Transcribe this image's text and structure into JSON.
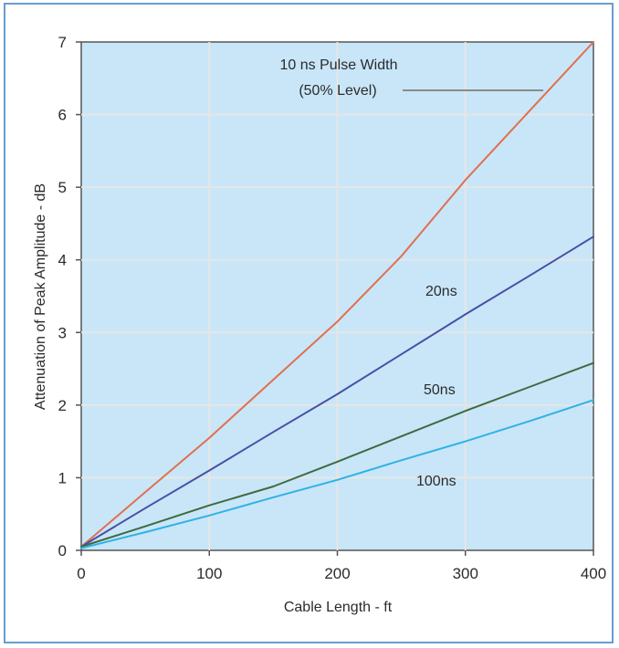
{
  "chart_data": {
    "type": "line",
    "title": "",
    "xlabel": "Cable Length - ft",
    "ylabel": "Attenuation of Peak Amplitude - dB",
    "xlim": [
      0,
      400
    ],
    "ylim": [
      0,
      7
    ],
    "xticks": [
      0,
      100,
      200,
      300,
      400
    ],
    "yticks": [
      0,
      1,
      2,
      3,
      4,
      5,
      6,
      7
    ],
    "grid": true,
    "plot_background": "#c8e6f8",
    "grid_color": "#e6e6e6",
    "series": [
      {
        "key": "10ns",
        "name": "10 ns Pulse Width (50% Level)",
        "label_lines": [
          "10 ns Pulse Width",
          "(50% Level)"
        ],
        "color": "#e0704f",
        "x": [
          0,
          50,
          100,
          150,
          200,
          250,
          300,
          350,
          400
        ],
        "y": [
          0.05,
          0.8,
          1.55,
          2.35,
          3.15,
          4.05,
          5.1,
          6.05,
          7.0
        ]
      },
      {
        "key": "20ns",
        "name": "20ns",
        "color": "#4a4fa5",
        "x": [
          0,
          50,
          100,
          150,
          200,
          250,
          300,
          350,
          400
        ],
        "y": [
          0.05,
          0.58,
          1.1,
          1.63,
          2.15,
          2.7,
          3.25,
          3.78,
          4.32
        ]
      },
      {
        "key": "50ns",
        "name": "50ns",
        "color": "#3e6b3f",
        "x": [
          0,
          50,
          100,
          150,
          200,
          250,
          300,
          350,
          400
        ],
        "y": [
          0.05,
          0.33,
          0.62,
          0.88,
          1.22,
          1.57,
          1.92,
          2.25,
          2.58
        ]
      },
      {
        "key": "100ns",
        "name": "100ns",
        "color": "#2fb2e6",
        "x": [
          0,
          50,
          100,
          150,
          200,
          250,
          300,
          350,
          400
        ],
        "y": [
          0.03,
          0.25,
          0.48,
          0.73,
          0.97,
          1.24,
          1.5,
          1.78,
          2.07
        ]
      }
    ]
  }
}
